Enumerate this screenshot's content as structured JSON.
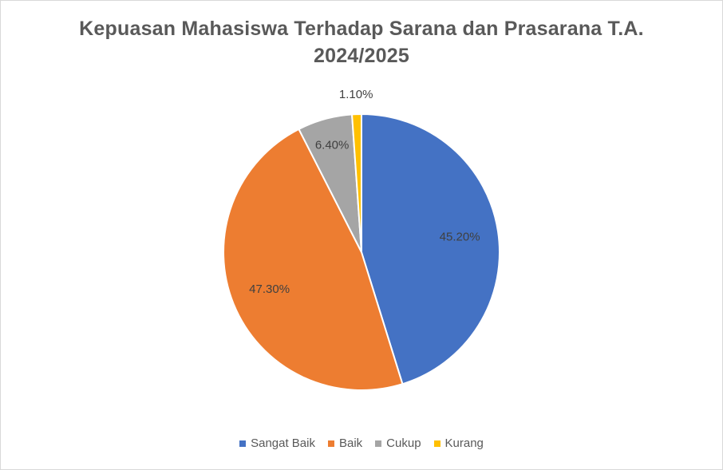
{
  "chart_data": {
    "type": "pie",
    "title_lines": [
      "Kepuasan Mahasiswa Terhadap Sarana dan Prasarana T.A.",
      "2024/2025"
    ],
    "categories": [
      "Sangat Baik",
      "Baik",
      "Cukup",
      "Kurang"
    ],
    "values": [
      45.2,
      47.3,
      6.4,
      1.1
    ],
    "data_labels": [
      "45.20%",
      "47.30%",
      "6.40%",
      "1.10%"
    ],
    "colors": [
      "#4472c4",
      "#ed7d31",
      "#a5a5a5",
      "#ffc000"
    ],
    "legend_position": "bottom",
    "start_angle_deg": 0,
    "direction": "clockwise"
  }
}
